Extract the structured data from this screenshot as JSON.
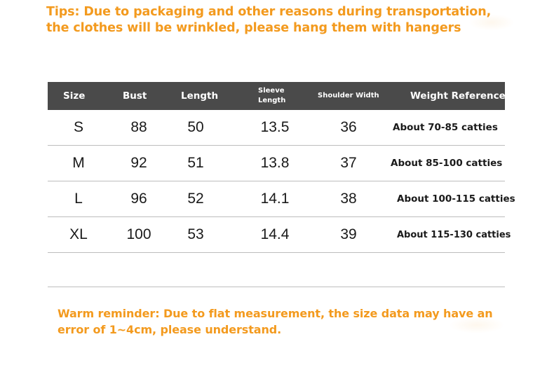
{
  "tips": {
    "line1": "Tips: Due to packaging and other reasons during transportation,",
    "line2": "the clothes will be wrinkled, please hang them with hangers"
  },
  "table": {
    "headers": {
      "size": "Size",
      "bust": "Bust",
      "length": "Length",
      "sleeve_line1": "Sleeve",
      "sleeve_line2": "Length",
      "shoulder": "Shoulder Width",
      "weight": "Weight Reference"
    },
    "rows": [
      {
        "size": "S",
        "bust": "88",
        "length": "50",
        "sleeve": "13.5",
        "shoulder": "36",
        "weight": "About 70-85 catties"
      },
      {
        "size": "M",
        "bust": "92",
        "length": "51",
        "sleeve": "13.8",
        "shoulder": "37",
        "weight": "About 85-100 catties"
      },
      {
        "size": "L",
        "bust": "96",
        "length": "52",
        "sleeve": "14.1",
        "shoulder": "38",
        "weight": "About 100-115 catties"
      },
      {
        "size": "XL",
        "bust": "100",
        "length": "53",
        "sleeve": "14.4",
        "shoulder": "39",
        "weight": "About 115-130 catties"
      }
    ]
  },
  "warm": {
    "line1": "Warm reminder: Due to flat measurement, the size data may have an",
    "line2": "error of 1~4cm, please understand."
  },
  "colors": {
    "accent": "#f39a1e",
    "header_bg": "#4a4a4a",
    "rule": "#bdbdbd"
  }
}
